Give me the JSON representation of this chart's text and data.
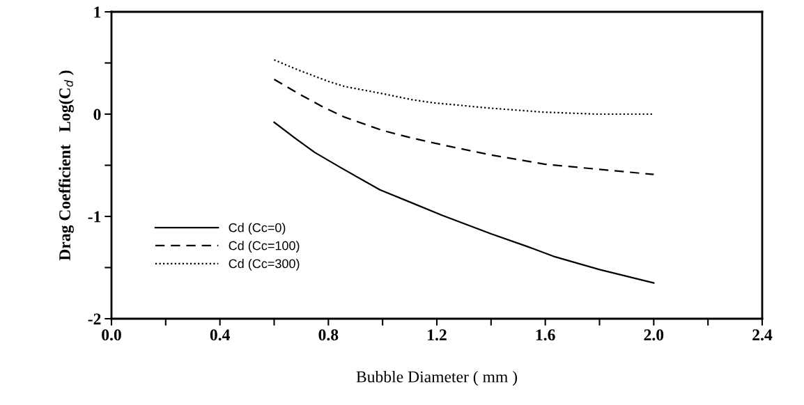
{
  "chart_data": {
    "type": "line",
    "xlabel": "Bubble Diameter ( mm )",
    "ylabel": "Drag Coefficient   Log(C$_{d}$ )",
    "xlim": [
      0.0,
      2.4
    ],
    "ylim": [
      -2,
      1
    ],
    "xticks": [
      {
        "value": 0.0,
        "label": "0.0"
      },
      {
        "value": 0.2,
        "label": null
      },
      {
        "value": 0.4,
        "label": "0.4"
      },
      {
        "value": 0.6,
        "label": null
      },
      {
        "value": 0.8,
        "label": "0.8"
      },
      {
        "value": 1.0,
        "label": null
      },
      {
        "value": 1.2,
        "label": "1.2"
      },
      {
        "value": 1.4,
        "label": null
      },
      {
        "value": 1.6,
        "label": "1.6"
      },
      {
        "value": 1.8,
        "label": null
      },
      {
        "value": 2.0,
        "label": "2.0"
      },
      {
        "value": 2.2,
        "label": null
      },
      {
        "value": 2.4,
        "label": "2.4"
      }
    ],
    "yticks": [
      -2,
      {
        "value": -1.5,
        "label": null
      },
      -1,
      {
        "value": -0.5,
        "label": null
      },
      0,
      {
        "value": 0.5,
        "label": null
      },
      1
    ],
    "grid": false,
    "legend": "bottom left",
    "marker": "none",
    "series": [
      {
        "name": "Cd (Cc=0)",
        "color": "#000000",
        "line_style": "solid",
        "x": [
          0.6,
          0.68,
          0.75,
          0.85,
          0.99,
          1.11,
          1.22,
          1.31,
          1.4,
          1.54,
          1.63,
          1.8,
          2.0
        ],
        "values": [
          -0.08,
          -0.24,
          -0.375,
          -0.53,
          -0.74,
          -0.87,
          -0.99,
          -1.08,
          -1.17,
          -1.3,
          -1.39,
          -1.52,
          -1.65
        ]
      },
      {
        "name": "Cd (Cc=100)",
        "color": "#000000",
        "line_style": "dashed",
        "x": [
          0.6,
          0.69,
          0.78,
          0.86,
          1.0,
          1.11,
          1.22,
          1.4,
          1.6,
          1.8,
          2.0
        ],
        "values": [
          0.34,
          0.2,
          0.07,
          -0.03,
          -0.16,
          -0.235,
          -0.3,
          -0.4,
          -0.49,
          -0.54,
          -0.59
        ]
      },
      {
        "name": "Cd (Cc=300)",
        "color": "#000000",
        "line_style": "dotted",
        "x": [
          0.6,
          0.69,
          0.8,
          0.86,
          1.0,
          1.11,
          1.19,
          1.39,
          1.59,
          1.79,
          2.0
        ],
        "values": [
          0.53,
          0.43,
          0.32,
          0.27,
          0.2,
          0.14,
          0.11,
          0.06,
          0.02,
          0.0,
          0.0
        ]
      }
    ]
  }
}
